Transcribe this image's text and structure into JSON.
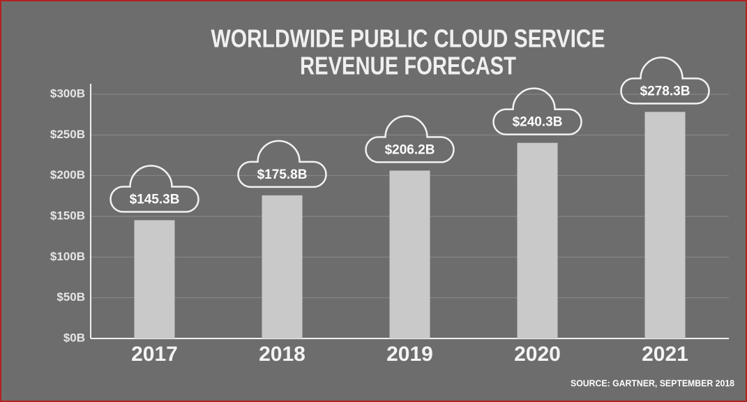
{
  "chart_data": {
    "type": "bar",
    "title": [
      "WORLDWIDE PUBLIC CLOUD SERVICE",
      "REVENUE FORECAST"
    ],
    "categories": [
      "2017",
      "2018",
      "2019",
      "2020",
      "2021"
    ],
    "values": [
      145.3,
      175.8,
      206.2,
      240.3,
      278.3
    ],
    "value_labels": [
      "$145.3B",
      "$175.8B",
      "$206.2B",
      "$240.3B",
      "$278.3B"
    ],
    "color": "#c9c9c9",
    "ylim": [
      0,
      300
    ],
    "yticks": [
      {
        "value": 0,
        "label": "$0B"
      },
      {
        "value": 50,
        "label": "$50B"
      },
      {
        "value": 100,
        "label": "$100B"
      },
      {
        "value": 150,
        "label": "$150B"
      },
      {
        "value": 200,
        "label": "$200B"
      },
      {
        "value": 250,
        "label": "$250B"
      },
      {
        "value": 300,
        "label": "$300B"
      }
    ],
    "grid": true,
    "source": "SOURCE: GARTNER, SEPTEMBER 2018"
  }
}
